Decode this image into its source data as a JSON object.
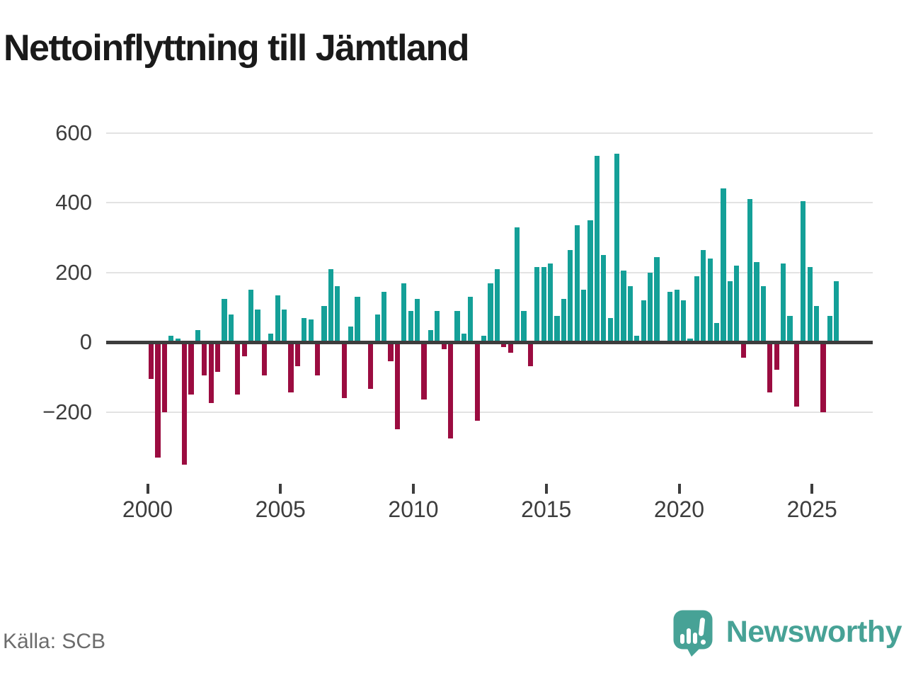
{
  "header": {
    "title": "Nettoinflyttning till Jämtland"
  },
  "footer": {
    "source": "Källa: SCB",
    "brand_name": "Newsworthy"
  },
  "chart_data": {
    "type": "bar",
    "title": "Nettoinflyttning till Jämtland",
    "x_frequency": "quarterly",
    "quarters": [
      "2000Q1",
      "2000Q2",
      "2000Q3",
      "2000Q4",
      "2001Q1",
      "2001Q2",
      "2001Q3",
      "2001Q4",
      "2002Q1",
      "2002Q2",
      "2002Q3",
      "2002Q4",
      "2003Q1",
      "2003Q2",
      "2003Q3",
      "2003Q4",
      "2004Q1",
      "2004Q2",
      "2004Q3",
      "2004Q4",
      "2005Q1",
      "2005Q2",
      "2005Q3",
      "2005Q4",
      "2006Q1",
      "2006Q2",
      "2006Q3",
      "2006Q4",
      "2007Q1",
      "2007Q2",
      "2007Q3",
      "2007Q4",
      "2008Q1",
      "2008Q2",
      "2008Q3",
      "2008Q4",
      "2009Q1",
      "2009Q2",
      "2009Q3",
      "2009Q4",
      "2010Q1",
      "2010Q2",
      "2010Q3",
      "2010Q4",
      "2011Q1",
      "2011Q2",
      "2011Q3",
      "2011Q4",
      "2012Q1",
      "2012Q2",
      "2012Q3",
      "2012Q4",
      "2013Q1",
      "2013Q2",
      "2013Q3",
      "2013Q4",
      "2014Q1",
      "2014Q2",
      "2014Q3",
      "2014Q4",
      "2015Q1",
      "2015Q2",
      "2015Q3",
      "2015Q4",
      "2016Q1",
      "2016Q2",
      "2016Q3",
      "2016Q4",
      "2017Q1",
      "2017Q2",
      "2017Q3",
      "2017Q4",
      "2018Q1",
      "2018Q2",
      "2018Q3",
      "2018Q4",
      "2019Q1",
      "2019Q2",
      "2019Q3",
      "2019Q4",
      "2020Q1",
      "2020Q2",
      "2020Q3",
      "2020Q4",
      "2021Q1",
      "2021Q2",
      "2021Q3",
      "2021Q4",
      "2022Q1",
      "2022Q2",
      "2022Q3",
      "2022Q4",
      "2023Q1",
      "2023Q2",
      "2023Q3",
      "2023Q4",
      "2024Q1",
      "2024Q2",
      "2024Q3",
      "2024Q4",
      "2025Q1",
      "2025Q2",
      "2025Q3",
      "2025Q4"
    ],
    "values": [
      -100,
      -325,
      -195,
      20,
      10,
      -345,
      -145,
      35,
      -90,
      -170,
      -80,
      125,
      80,
      -145,
      -35,
      150,
      95,
      -90,
      25,
      135,
      95,
      -140,
      -65,
      70,
      65,
      -90,
      105,
      210,
      160,
      -155,
      45,
      130,
      0,
      -130,
      80,
      145,
      -50,
      -245,
      170,
      90,
      125,
      -160,
      35,
      90,
      -15,
      -270,
      90,
      25,
      130,
      -220,
      20,
      170,
      210,
      -10,
      -25,
      330,
      90,
      -65,
      215,
      215,
      225,
      75,
      125,
      265,
      335,
      150,
      350,
      535,
      250,
      70,
      540,
      205,
      160,
      20,
      120,
      200,
      245,
      0,
      145,
      150,
      120,
      10,
      190,
      265,
      240,
      55,
      440,
      175,
      220,
      -40,
      410,
      230,
      160,
      -140,
      -75,
      225,
      75,
      -180,
      405,
      215,
      105,
      -195,
      75,
      175
    ],
    "x_tick_labels": [
      "2000",
      "2005",
      "2010",
      "2015",
      "2020",
      "2025"
    ],
    "y_ticks": [
      {
        "label": "600",
        "value": 600
      },
      {
        "label": "400",
        "value": 400
      },
      {
        "label": "200",
        "value": 200
      },
      {
        "label": "0",
        "value": 0
      },
      {
        "label": "−200",
        "value": -200
      }
    ],
    "ylim": [
      -380,
      620
    ],
    "grid": "horizontal",
    "legend": "none",
    "colors": {
      "positive_bar": "#14a098",
      "negative_bar": "#9b0c40",
      "axis": "#3d3d3d",
      "gridline": "#e3e3e3",
      "brand_teal": "#47a296"
    }
  }
}
